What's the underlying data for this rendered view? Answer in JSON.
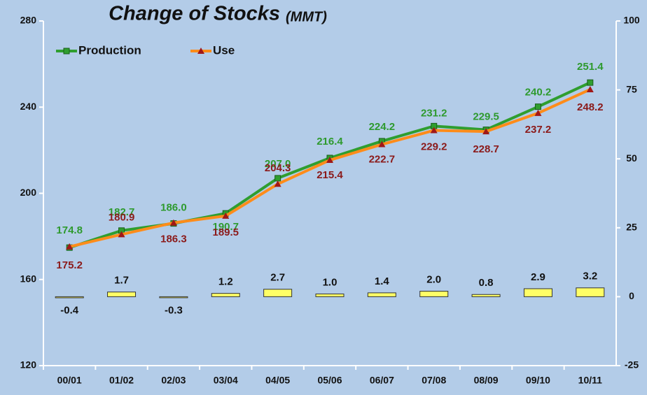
{
  "chart_data": {
    "type": "line",
    "title": "Change of Stocks",
    "subtitle": "(MMT)",
    "categories": [
      "00/01",
      "01/02",
      "02/03",
      "03/04",
      "04/05",
      "05/06",
      "06/07",
      "07/08",
      "08/09",
      "09/10",
      "10/11"
    ],
    "series": [
      {
        "name": "Production",
        "type": "line",
        "color": "#2f9e2f",
        "label_color": "#2e9a2e",
        "marker": "square",
        "values": [
          174.8,
          182.7,
          186.0,
          190.7,
          207.0,
          216.4,
          224.2,
          231.2,
          229.5,
          240.2,
          251.4
        ],
        "value_labels": [
          "174.8",
          "182.7",
          "186.0",
          "190.7",
          "207.0",
          "216.4",
          "224.2",
          "231.2",
          "229.5",
          "240.2",
          "251.4"
        ]
      },
      {
        "name": "Use",
        "type": "line",
        "color": "#ff8c1a",
        "label_color": "#8b1a1a",
        "marker": "triangle",
        "values": [
          175.2,
          180.9,
          186.3,
          189.5,
          204.3,
          215.4,
          222.7,
          229.2,
          228.7,
          237.2,
          248.2
        ],
        "value_labels": [
          "175.2",
          "180.9",
          "186.3",
          "189.5",
          "204.3",
          "215.4",
          "222.7",
          "229.2",
          "228.7",
          "237.2",
          "248.2"
        ]
      },
      {
        "type": "bar",
        "axis": "y2",
        "color": "#ffff66",
        "label_color": "#111111",
        "values": [
          -0.4,
          1.7,
          -0.3,
          1.2,
          2.7,
          1.0,
          1.4,
          2.0,
          0.8,
          2.9,
          3.2
        ],
        "value_labels": [
          "-0.4",
          "1.7",
          "-0.3",
          "1.2",
          "2.7",
          "1.0",
          "1.4",
          "2.0",
          "0.8",
          "2.9",
          "3.2"
        ]
      }
    ],
    "ylim": [
      120,
      280
    ],
    "yticks": [
      120,
      160,
      200,
      240,
      280
    ],
    "y2lim": [
      -25,
      100
    ],
    "y2ticks": [
      -25,
      0,
      25,
      50,
      75,
      100
    ],
    "legend": "top-left"
  }
}
